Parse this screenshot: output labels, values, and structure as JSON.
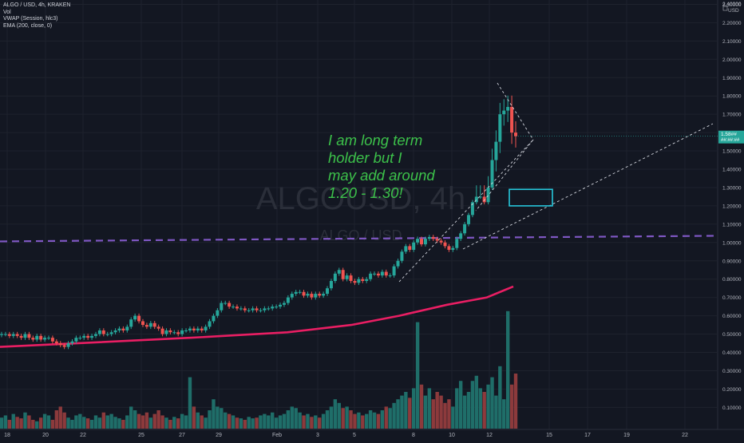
{
  "legend": {
    "symbol_line": "ALGO / USD, 4h, KRAKEN",
    "vol": "Vol",
    "vwap": "VWAP (Session, hlc3)",
    "ema": "EMA (200, close, 0)"
  },
  "watermark": {
    "symbol": "ALGOUSD, 4h",
    "description": "ALGO / USD"
  },
  "annotation": {
    "lines": [
      "I am long term",
      "holder but I",
      "may add around",
      "1.20 - 1.30!"
    ]
  },
  "axis": {
    "currency": "USD",
    "price_label": "1.58##",
    "countdown": "##:##:##",
    "top_tick": "2.40000"
  },
  "colors": {
    "background": "#131722",
    "up": "#26a69a",
    "down": "#ef5350",
    "ema": "#e91e63",
    "vwap": "#7e57c2",
    "annotation": "#3cc14a",
    "box": "#26c6da",
    "last_price_bg": "#26a69a"
  },
  "chart_data": {
    "type": "candlestick",
    "title": "ALGO / USD, 4h, KRAKEN",
    "ylim": [
      0,
      2.45
    ],
    "x_ticks": [
      "18",
      "20",
      "22",
      "25",
      "27",
      "29",
      "Feb",
      "3",
      "5",
      "8",
      "10",
      "12",
      "15",
      "17",
      "19",
      "22"
    ],
    "y_ticks": [
      "2.30000",
      "2.20000",
      "2.10000",
      "2.00000",
      "1.90000",
      "1.80000",
      "1.70000",
      "1.60000",
      "1.50000",
      "1.40000",
      "1.30000",
      "1.20000",
      "1.10000",
      "1.00000",
      "0.90000",
      "0.80000",
      "0.70000",
      "0.60000",
      "0.50000",
      "0.40000",
      "0.30000",
      "0.20000",
      "0.10000"
    ],
    "price_close": [
      0.5,
      0.5,
      0.49,
      0.5,
      0.49,
      0.48,
      0.5,
      0.48,
      0.47,
      0.49,
      0.47,
      0.48,
      0.48,
      0.46,
      0.45,
      0.44,
      0.43,
      0.45,
      0.46,
      0.48,
      0.48,
      0.49,
      0.48,
      0.49,
      0.5,
      0.52,
      0.5,
      0.5,
      0.51,
      0.52,
      0.53,
      0.52,
      0.54,
      0.58,
      0.6,
      0.57,
      0.55,
      0.54,
      0.56,
      0.54,
      0.53,
      0.5,
      0.52,
      0.51,
      0.51,
      0.5,
      0.52,
      0.52,
      0.53,
      0.52,
      0.53,
      0.52,
      0.54,
      0.57,
      0.6,
      0.63,
      0.67,
      0.67,
      0.65,
      0.65,
      0.64,
      0.64,
      0.63,
      0.63,
      0.64,
      0.63,
      0.63,
      0.64,
      0.64,
      0.65,
      0.65,
      0.66,
      0.67,
      0.7,
      0.72,
      0.73,
      0.73,
      0.71,
      0.72,
      0.7,
      0.72,
      0.71,
      0.72,
      0.75,
      0.79,
      0.83,
      0.85,
      0.8,
      0.82,
      0.79,
      0.78,
      0.8,
      0.79,
      0.8,
      0.83,
      0.83,
      0.82,
      0.84,
      0.82,
      0.82,
      0.87,
      0.9,
      0.95,
      0.98,
      0.96,
      1.0,
      1.02,
      0.99,
      1.02,
      1.03,
      1.02,
      1.01,
      1.0,
      0.98,
      0.96,
      0.97,
      1.02,
      1.05,
      1.1,
      1.15,
      1.22,
      1.25,
      1.25,
      1.22,
      1.3,
      1.45,
      1.55,
      1.7,
      1.72,
      1.74,
      1.6,
      1.58
    ],
    "ema": [
      0.43,
      0.455,
      0.48,
      0.51,
      0.55,
      0.6,
      0.66,
      0.7,
      0.76
    ],
    "vwap_level": 1.03,
    "annotation_box": [
      1.2,
      1.29
    ],
    "last_price": 1.58,
    "volume_unit": "relative",
    "volume": [
      0.15,
      0.18,
      0.12,
      0.2,
      0.16,
      0.14,
      0.22,
      0.18,
      0.12,
      0.1,
      0.15,
      0.2,
      0.18,
      0.12,
      0.25,
      0.3,
      0.22,
      0.15,
      0.12,
      0.18,
      0.2,
      0.16,
      0.14,
      0.12,
      0.18,
      0.15,
      0.22,
      0.18,
      0.2,
      0.16,
      0.14,
      0.12,
      0.18,
      0.3,
      0.25,
      0.2,
      0.18,
      0.22,
      0.15,
      0.2,
      0.25,
      0.18,
      0.15,
      0.12,
      0.16,
      0.14,
      0.2,
      0.18,
      0.7,
      0.3,
      0.22,
      0.18,
      0.15,
      0.25,
      0.4,
      0.3,
      0.28,
      0.22,
      0.2,
      0.18,
      0.15,
      0.14,
      0.12,
      0.16,
      0.14,
      0.15,
      0.18,
      0.2,
      0.18,
      0.22,
      0.15,
      0.18,
      0.2,
      0.25,
      0.3,
      0.28,
      0.22,
      0.18,
      0.2,
      0.16,
      0.18,
      0.15,
      0.2,
      0.25,
      0.3,
      0.4,
      0.35,
      0.28,
      0.3,
      0.25,
      0.2,
      0.22,
      0.18,
      0.2,
      0.25,
      0.22,
      0.2,
      0.25,
      0.3,
      0.28,
      0.35,
      0.4,
      0.45,
      0.5,
      0.42,
      0.55,
      1.45,
      0.6,
      0.45,
      0.55,
      0.4,
      0.5,
      0.45,
      0.35,
      0.4,
      0.3,
      0.55,
      0.65,
      0.45,
      0.5,
      0.65,
      0.72,
      0.55,
      0.5,
      0.6,
      0.7,
      0.45,
      0.85,
      0.4,
      1.6,
      0.6,
      0.75
    ]
  }
}
